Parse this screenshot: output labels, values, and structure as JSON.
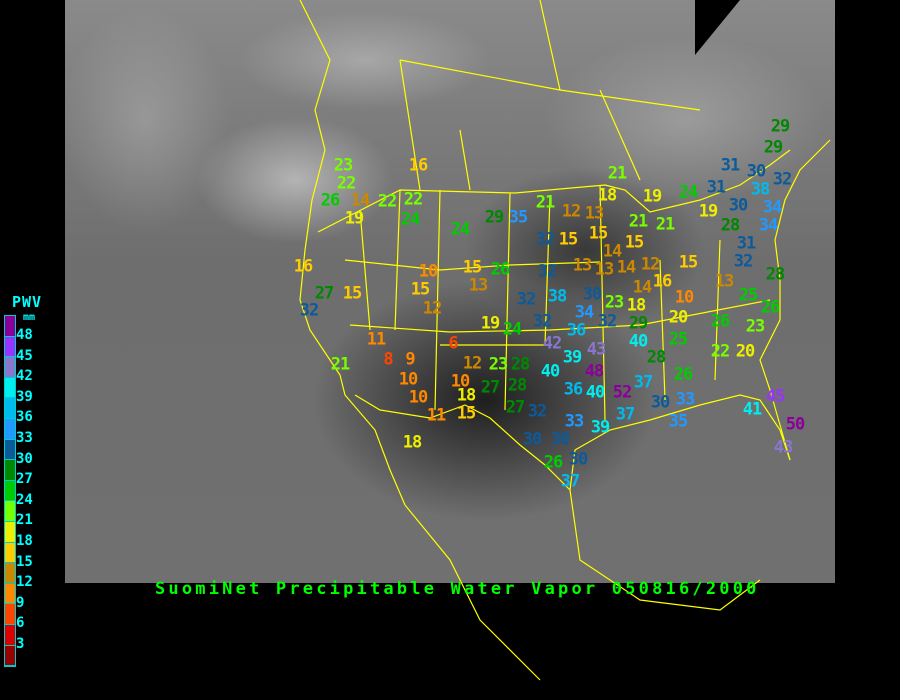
{
  "title": "SuomiNet Precipitable Water Vapor 050816/2000",
  "legend": {
    "title": "PWV",
    "unit": "mm",
    "ticks": [
      "48",
      "45",
      "42",
      "39",
      "36",
      "33",
      "30",
      "27",
      "24",
      "21",
      "18",
      "15",
      "12",
      "9",
      "6",
      "3"
    ],
    "colors": [
      "#8b0099",
      "#9933ff",
      "#8877cc",
      "#00eeee",
      "#00bbee",
      "#2299ff",
      "#0c5a9a",
      "#008800",
      "#00cc00",
      "#77ff00",
      "#eeee00",
      "#ffcc00",
      "#cc8800",
      "#ff8800",
      "#ff4400",
      "#dd0000",
      "#990000"
    ]
  },
  "border_color": "#ffff00",
  "stations": [
    23,
    22,
    26,
    14,
    19,
    22,
    22,
    24,
    16,
    24,
    29,
    35,
    21,
    32,
    16,
    27,
    15,
    32,
    10,
    15,
    12,
    15,
    13,
    26,
    32,
    32,
    19,
    24,
    32,
    11,
    6,
    8,
    9,
    21,
    12,
    10,
    23,
    28,
    27,
    28,
    10,
    10,
    11,
    18,
    15,
    27,
    32,
    30,
    30,
    33,
    39,
    18,
    26,
    30,
    37,
    42,
    36,
    39,
    40,
    43,
    48,
    36,
    40,
    12,
    13,
    21,
    18,
    19,
    24,
    21,
    21,
    15,
    15,
    14,
    15,
    13,
    13,
    14,
    12,
    14,
    16,
    10,
    15,
    13,
    25,
    26,
    23,
    26,
    20,
    23,
    18,
    29,
    32,
    34,
    38,
    30,
    40,
    25,
    29,
    29,
    31,
    30,
    32,
    31,
    38,
    30,
    34,
    34,
    19,
    28,
    31,
    32,
    28,
    22,
    20,
    26,
    28,
    37,
    52,
    37,
    30,
    33,
    35,
    41,
    45,
    50,
    43
  ]
}
